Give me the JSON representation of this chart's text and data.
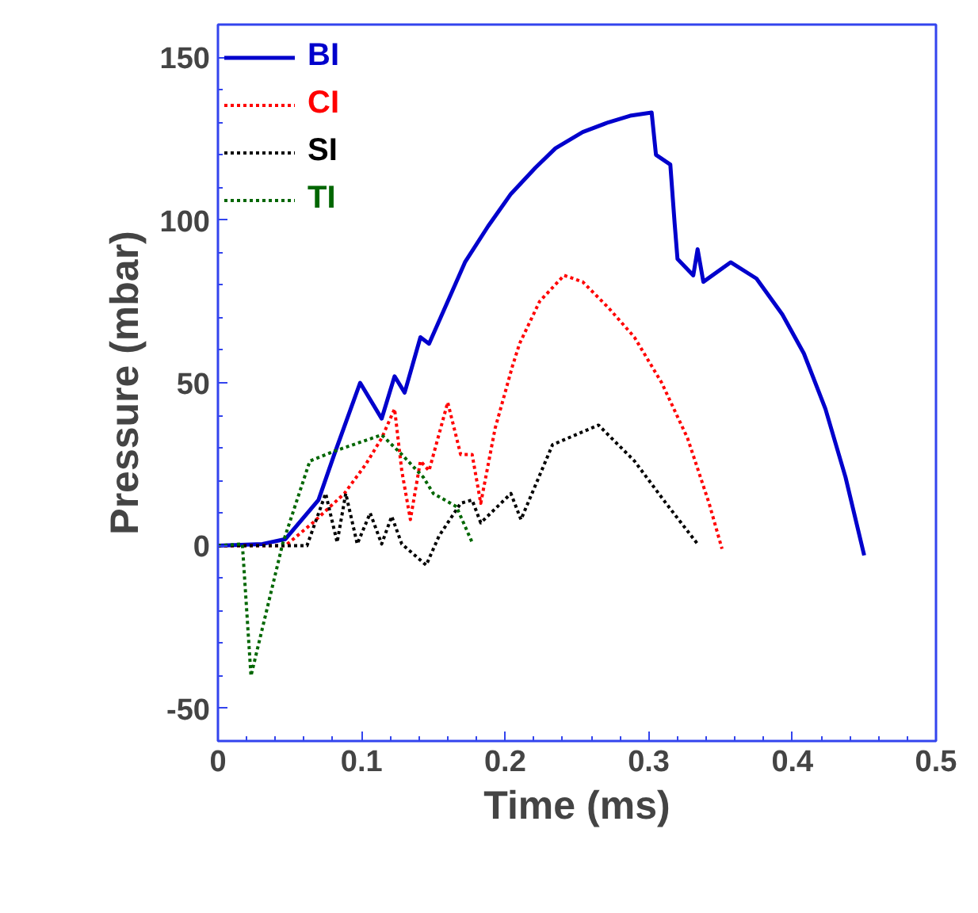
{
  "chart_data": {
    "type": "line",
    "xlabel": "Time (ms)",
    "ylabel": "Pressure (mbar)",
    "xlim": [
      0,
      0.5
    ],
    "ylim": [
      -60,
      160
    ],
    "xticks": [
      0,
      0.1,
      0.2,
      0.3,
      0.4,
      0.5
    ],
    "yticks": [
      -50,
      0,
      50,
      100,
      150
    ],
    "grid": false,
    "legend": "top left",
    "marker": "none",
    "series": [
      {
        "name": "BI",
        "color": "#0000cc",
        "line_style": "solid",
        "x": [
          0,
          0.031,
          0.047,
          0.07,
          0.081,
          0.099,
          0.114,
          0.123,
          0.13,
          0.141,
          0.147,
          0.161,
          0.172,
          0.188,
          0.204,
          0.221,
          0.235,
          0.254,
          0.272,
          0.287,
          0.302,
          0.305,
          0.315,
          0.318,
          0.32,
          0.331,
          0.334,
          0.338,
          0.357,
          0.375,
          0.393,
          0.408,
          0.423,
          0.437,
          0.45
        ],
        "values": [
          0,
          0.5,
          2,
          14,
          28,
          50,
          39,
          52,
          47,
          64,
          62,
          76,
          87,
          98,
          108,
          116,
          122,
          127,
          130,
          132,
          133,
          120,
          117,
          99,
          88,
          83,
          91,
          81,
          87,
          82,
          71,
          59,
          42,
          21,
          -3
        ]
      },
      {
        "name": "CI",
        "color": "#ff0000",
        "line_style": "dotted",
        "x": [
          0,
          0.047,
          0.066,
          0.088,
          0.103,
          0.114,
          0.123,
          0.128,
          0.134,
          0.141,
          0.147,
          0.16,
          0.169,
          0.177,
          0.183,
          0.193,
          0.205,
          0.21,
          0.224,
          0.241,
          0.254,
          0.272,
          0.29,
          0.309,
          0.327,
          0.342,
          0.351
        ],
        "values": [
          0,
          0,
          7,
          16,
          25,
          33,
          42,
          23,
          8,
          26,
          23,
          44,
          28,
          28,
          13,
          36,
          55,
          62,
          75,
          83,
          81,
          73,
          64,
          50,
          33,
          13,
          -1
        ]
      },
      {
        "name": "SI",
        "color": "#000000",
        "line_style": "dotted",
        "x": [
          0,
          0.062,
          0.075,
          0.083,
          0.089,
          0.097,
          0.106,
          0.114,
          0.121,
          0.128,
          0.145,
          0.154,
          0.169,
          0.177,
          0.183,
          0.204,
          0.211,
          0.233,
          0.265,
          0.29,
          0.312,
          0.334
        ],
        "values": [
          0,
          0,
          16,
          1,
          16,
          0.5,
          10,
          0.5,
          9,
          0.5,
          -6,
          3,
          13,
          14,
          7,
          16,
          8,
          31,
          37,
          26,
          13,
          0.5
        ]
      },
      {
        "name": "TI",
        "color": "#006600",
        "line_style": "dotted",
        "x": [
          0,
          0.017,
          0.023,
          0.045,
          0.064,
          0.081,
          0.114,
          0.128,
          0.143,
          0.15,
          0.166,
          0.177
        ],
        "values": [
          0,
          0.5,
          -40,
          0.5,
          26,
          29,
          34,
          28,
          21,
          16,
          12,
          1
        ]
      }
    ]
  }
}
